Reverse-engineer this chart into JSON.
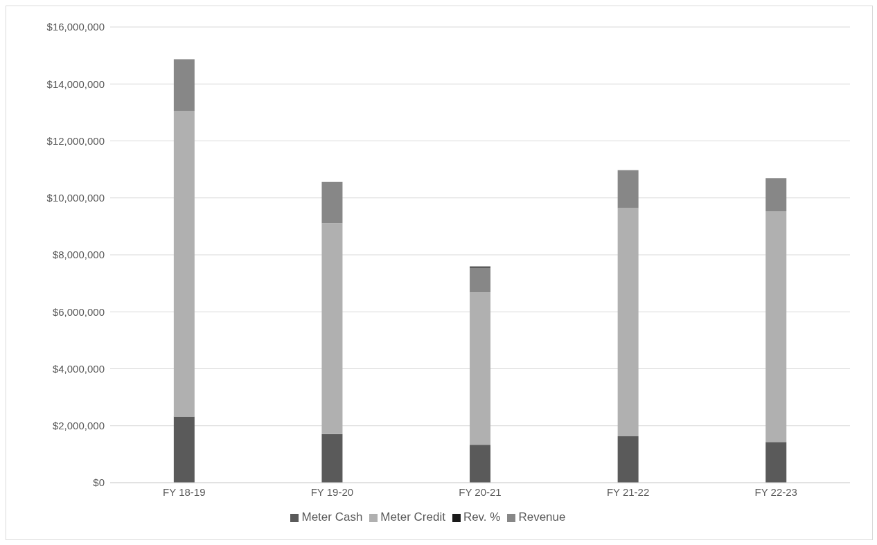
{
  "chart_data": {
    "type": "bar",
    "stacked": true,
    "categories": [
      "FY 18-19",
      "FY 19-20",
      "FY 20-21",
      "FY 21-22",
      "FY 22-23"
    ],
    "series": [
      {
        "name": "Meter Cash",
        "color": "#5a5a5a",
        "values": [
          2320000,
          1710000,
          1330000,
          1630000,
          1430000
        ]
      },
      {
        "name": "Meter Credit",
        "color": "#b0b0b0",
        "values": [
          10740000,
          7400000,
          5350000,
          8010000,
          8100000
        ]
      },
      {
        "name": "Revenue",
        "color": "#878787",
        "values": [
          1810000,
          1450000,
          870000,
          1330000,
          1160000
        ]
      },
      {
        "name": "Rev. %",
        "color": "#1a1a1a",
        "values": [
          0,
          0,
          40000,
          0,
          0
        ]
      }
    ],
    "ylim": [
      0,
      16000000
    ],
    "yticks": [
      {
        "value": 0,
        "label": "$0"
      },
      {
        "value": 2000000,
        "label": "$2,000,000"
      },
      {
        "value": 4000000,
        "label": "$4,000,000"
      },
      {
        "value": 6000000,
        "label": "$6,000,000"
      },
      {
        "value": 8000000,
        "label": "$8,000,000"
      },
      {
        "value": 10000000,
        "label": "$10,000,000"
      },
      {
        "value": 12000000,
        "label": "$12,000,000"
      },
      {
        "value": 14000000,
        "label": "$14,000,000"
      },
      {
        "value": 16000000,
        "label": "$16,000,000"
      }
    ],
    "grid": "y",
    "legend": "bottom"
  }
}
